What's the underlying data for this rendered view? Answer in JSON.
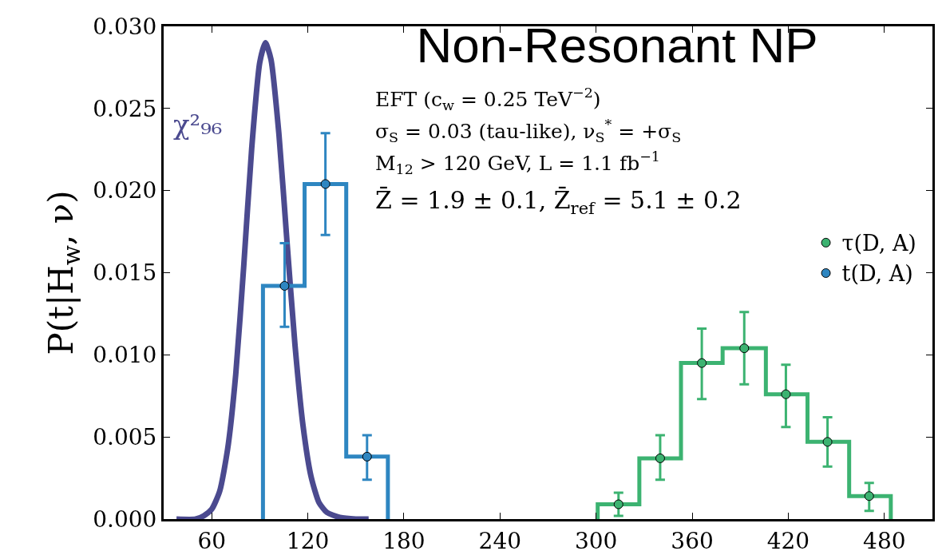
{
  "chart_data": {
    "type": "histogram",
    "title": "Non-Resonant NP",
    "ylabel": "P(t|H$_{w}$, ν)",
    "annotations": [
      "EFT (c$_{w}$ = 0.25 TeV$^{−2}$)",
      "σ$_{S}$ = 0.03 (tau-like), ν$_{S}$$^{*}$ = +σ$_{S}$",
      "M$_{12}$ > 120 GeV, L = 1.1 fb$^{−1}$",
      "Z̄ = 1.9 ± 0.1, Z̄$_{ref}$ = 5.1 ± 0.2"
    ],
    "xlim": [
      30,
      510
    ],
    "xticks": [
      60,
      120,
      180,
      240,
      300,
      360,
      420,
      480
    ],
    "ylim": [
      0,
      0.03
    ],
    "yticks": [
      {
        "value": 0,
        "label": "0.000"
      },
      {
        "value": 0.005,
        "label": "0.005"
      },
      {
        "value": 0.01,
        "label": "0.010"
      },
      {
        "value": 0.015,
        "label": "0.015"
      },
      {
        "value": 0.02,
        "label": "0.020"
      },
      {
        "value": 0.025,
        "label": "0.025"
      },
      {
        "value": 0.03,
        "label": "0.030"
      }
    ],
    "grid": false,
    "legend": "right",
    "series": [
      {
        "type": "line",
        "name": "χ²₉₆",
        "color": "#4b4a8f",
        "x": [
          38,
          50,
          55,
          60,
          65,
          70,
          75,
          80,
          85,
          90,
          93.5,
          97,
          102,
          107,
          112,
          117,
          122,
          127,
          132,
          140,
          150,
          158
        ],
        "values": [
          0,
          0,
          0.0002,
          0.0006,
          0.0017,
          0.0043,
          0.0088,
          0.0154,
          0.0226,
          0.0278,
          0.029,
          0.028,
          0.0234,
          0.0169,
          0.0106,
          0.0057,
          0.0026,
          0.001,
          0.0004,
          0.0001,
          0,
          0
        ]
      },
      {
        "color": "#3cb371",
        "bins": [
          301,
          327,
          353,
          379,
          406,
          432,
          458,
          484
        ],
        "values": [
          0.0009,
          0.0037,
          0.0095,
          0.0104,
          0.0076,
          0.0047,
          0.0014
        ]
      },
      {
        "color": "#2e86c1",
        "bins": [
          92,
          118,
          144,
          170
        ],
        "values": [
          0.0142,
          0.0204,
          0.0038
        ]
      },
      {
        "type": "scatter",
        "marker": "circle",
        "name": "τ(D, A)",
        "color": "#3cb371",
        "x": [
          314,
          340,
          366,
          392.5,
          418.5,
          444.5,
          470.5
        ],
        "values": [
          0.0009,
          0.0037,
          0.0095,
          0.0104,
          0.0076,
          0.0047,
          0.0014
        ],
        "errors": [
          [
            0.0002,
            0.0016
          ],
          [
            0.0024,
            0.0051
          ],
          [
            0.0073,
            0.0116
          ],
          [
            0.0082,
            0.0126
          ],
          [
            0.0056,
            0.0094
          ],
          [
            0.0032,
            0.0062
          ],
          [
            0.0005,
            0.0022
          ]
        ]
      },
      {
        "type": "scatter",
        "marker": "circle",
        "name": "t(D, A)",
        "color": "#2e86c1",
        "x": [
          105.5,
          131,
          157
        ],
        "values": [
          0.0142,
          0.0204,
          0.0038
        ],
        "errors": [
          [
            0.0117,
            0.0168
          ],
          [
            0.0173,
            0.0235
          ],
          [
            0.0024,
            0.0051
          ]
        ]
      }
    ]
  }
}
